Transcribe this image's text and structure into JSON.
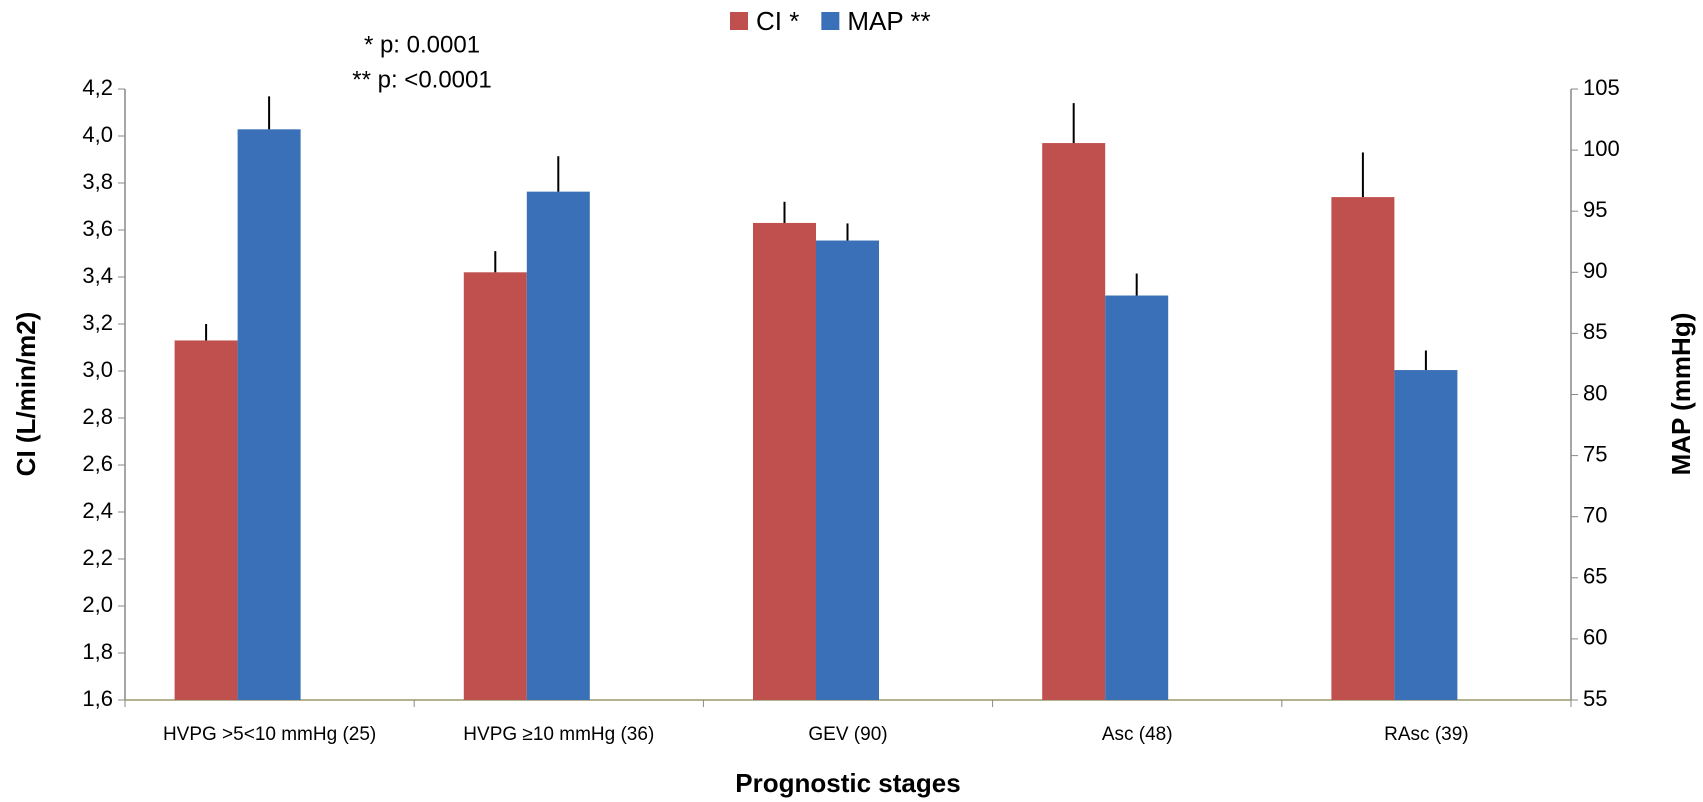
{
  "chart_data": {
    "type": "bar",
    "x_label": "Prognostic stages",
    "y_label": "CI (L/min/m2)",
    "y2_label": "MAP (mmHg)",
    "annotations": [
      "* p: 0.0001",
      "** p: <0.0001"
    ],
    "categories": [
      "HVPG >5<10 mmHg (25)",
      "HVPG ≥10 mmHg (36)",
      "GEV (90)",
      "Asc (48)",
      "RAsc (39)"
    ],
    "series": [
      {
        "name": "CI *",
        "color": "#c0504d",
        "values": [
          3.13,
          3.42,
          3.63,
          3.97,
          3.74
        ],
        "errors": [
          0.07,
          0.09,
          0.09,
          0.17,
          0.19
        ]
      },
      {
        "name": "MAP **",
        "color": "#3a70b8",
        "axis": "y2",
        "values": [
          101.7,
          96.6,
          92.6,
          88.1,
          82.0
        ],
        "errors": [
          2.7,
          2.9,
          1.4,
          1.8,
          1.6
        ]
      }
    ],
    "ylim": [
      1.6,
      4.2
    ],
    "yticks": [
      {
        "value": 1.6,
        "label": "1,6"
      },
      {
        "value": 1.8,
        "label": "1,8"
      },
      {
        "value": 2.0,
        "label": "2,0"
      },
      {
        "value": 2.2,
        "label": "2,2"
      },
      {
        "value": 2.4,
        "label": "2,4"
      },
      {
        "value": 2.6,
        "label": "2,6"
      },
      {
        "value": 2.8,
        "label": "2,8"
      },
      {
        "value": 3.0,
        "label": "3,0"
      },
      {
        "value": 3.2,
        "label": "3,2"
      },
      {
        "value": 3.4,
        "label": "3,4"
      },
      {
        "value": 3.6,
        "label": "3,6"
      },
      {
        "value": 3.8,
        "label": "3,8"
      },
      {
        "value": 4.0,
        "label": "4,0"
      },
      {
        "value": 4.2,
        "label": "4,2"
      }
    ],
    "y2lim": [
      55,
      105
    ],
    "y2ticks": [
      55,
      60,
      65,
      70,
      75,
      80,
      85,
      90,
      95,
      100,
      105
    ],
    "legend": "top"
  }
}
